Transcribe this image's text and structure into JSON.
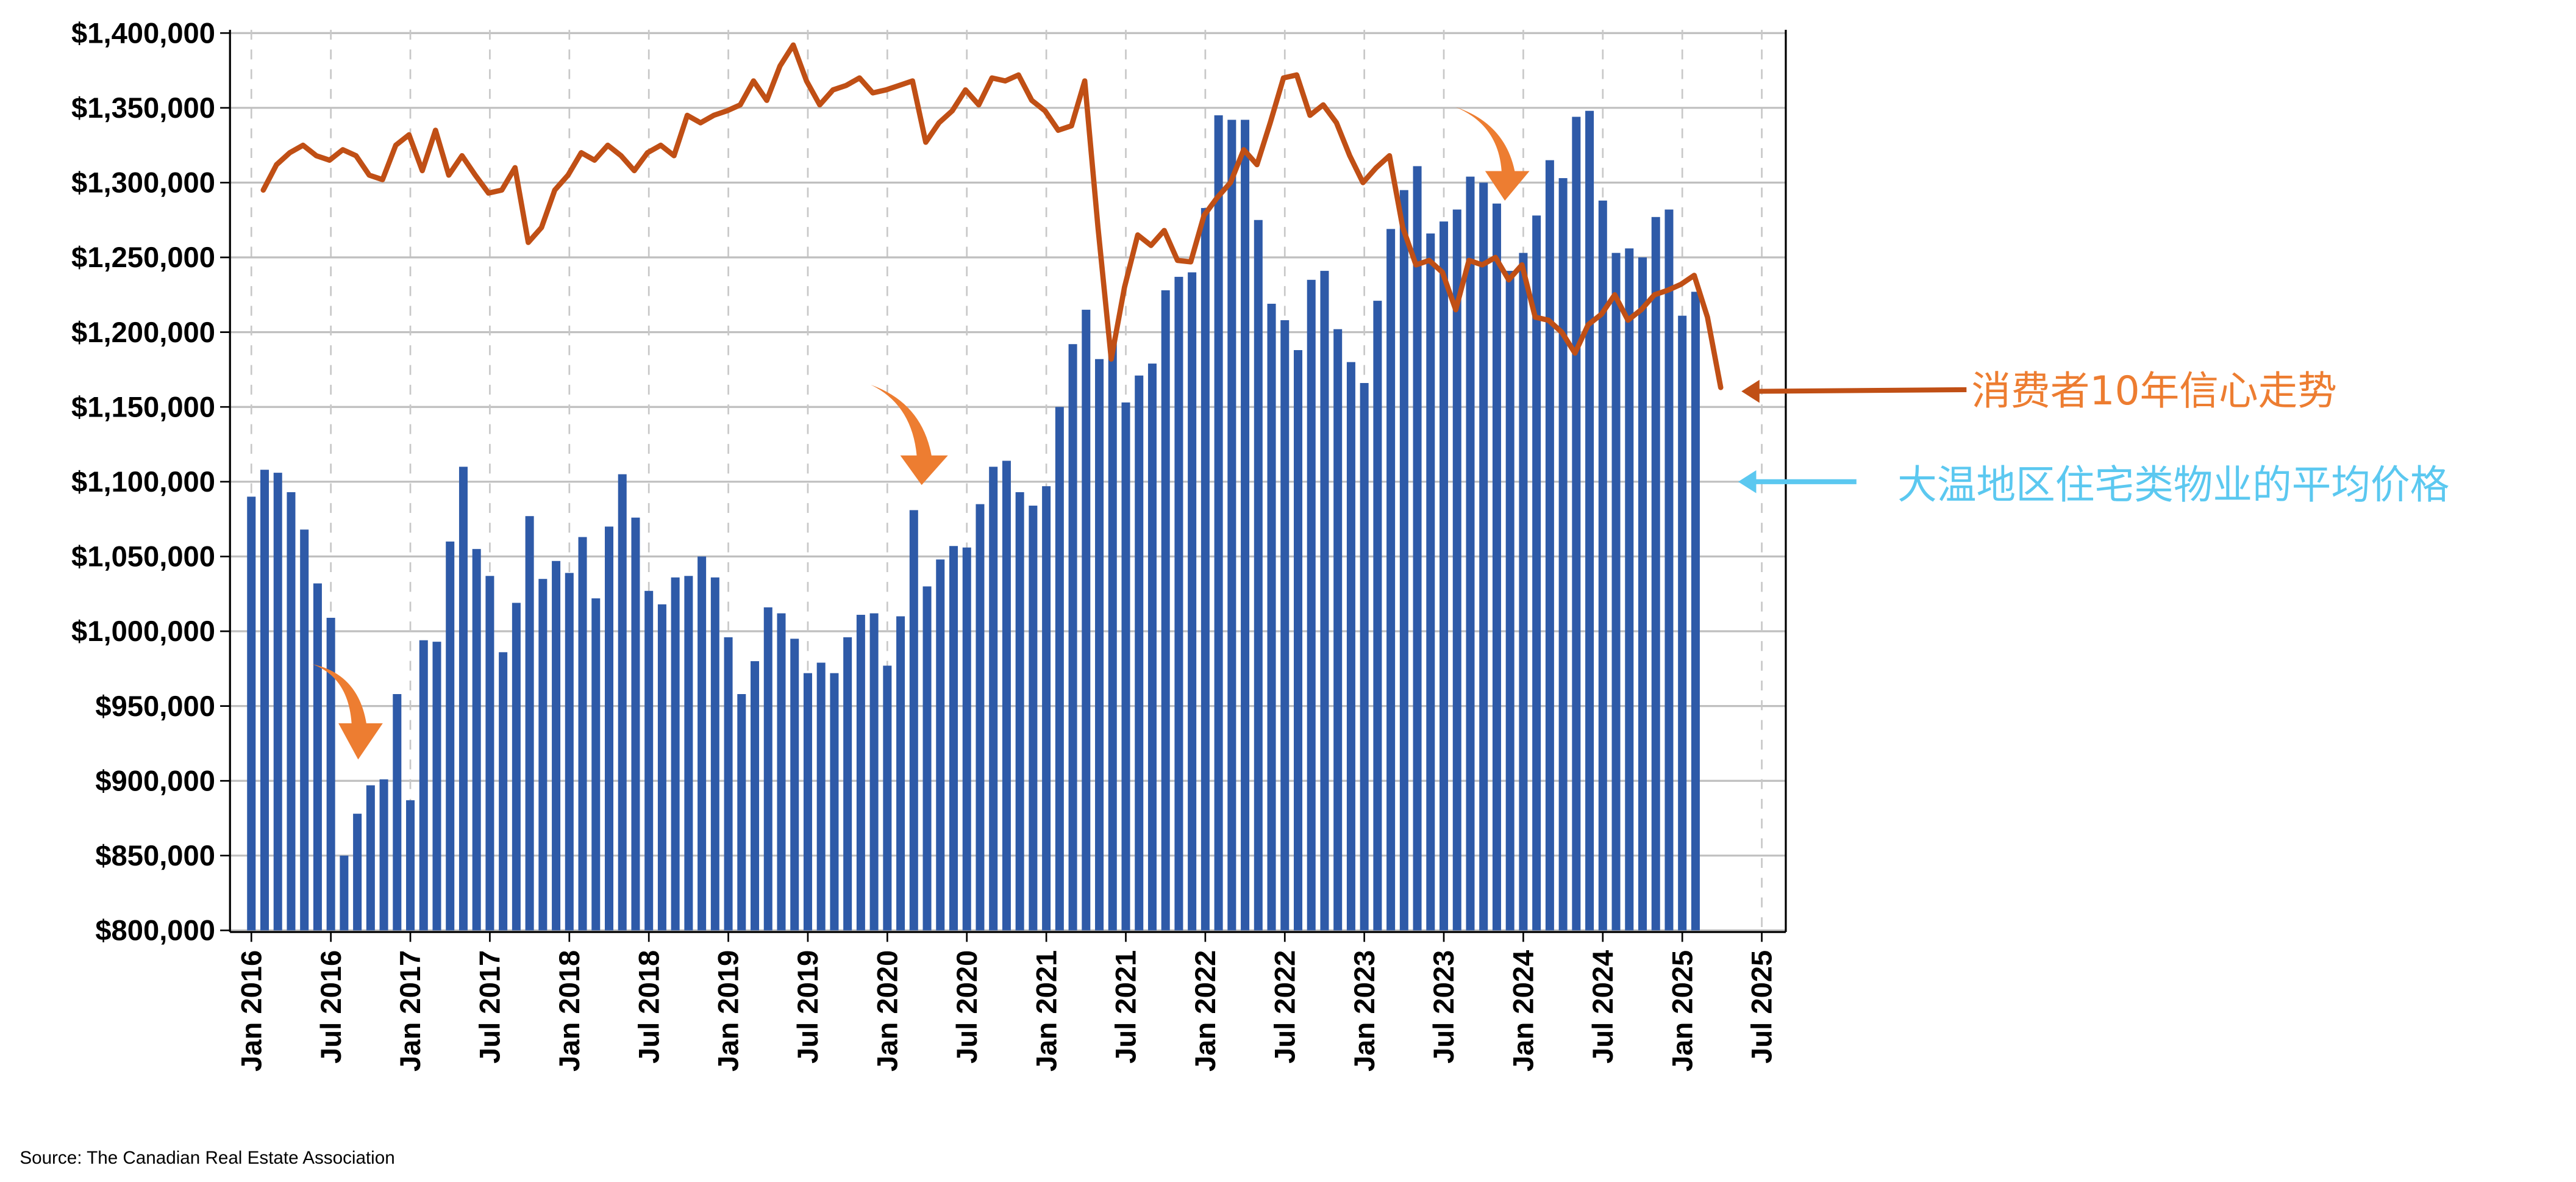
{
  "chart_data": {
    "type": "bar",
    "title": "",
    "xlabel": "",
    "ylabel": "",
    "ylim": [
      800000,
      1400000
    ],
    "grid": true,
    "y_ticks": [
      "$800,000",
      "$850,000",
      "$900,000",
      "$950,000",
      "$1,000,000",
      "$1,050,000",
      "$1,100,000",
      "$1,150,000",
      "$1,200,000",
      "$1,250,000",
      "$1,300,000",
      "$1,350,000",
      "$1,400,000"
    ],
    "x_ticks": [
      "Jan 2016",
      "Jul 2016",
      "Jan 2017",
      "Jul 2017",
      "Jan 2018",
      "Jul 2018",
      "Jan 2019",
      "Jul 2019",
      "Jan 2020",
      "Jul 2020",
      "Jan 2021",
      "Jul 2021",
      "Jan 2022",
      "Jul 2022",
      "Jan 2023",
      "Jul 2023",
      "Jan 2024",
      "Jul 2024",
      "Jan 2025",
      "Jul 2025"
    ],
    "x_start": "Jan 2016",
    "x_frequency": "monthly",
    "series": [
      {
        "name": "大温地区住宅类物业的平均价格",
        "type": "bar",
        "color": "#2E5AA8",
        "values": [
          1090000,
          1108000,
          1106000,
          1093000,
          1068000,
          1032000,
          1009000,
          850000,
          878000,
          897000,
          901000,
          958000,
          887000,
          994000,
          993000,
          1060000,
          1110000,
          1055000,
          1037000,
          986000,
          1019000,
          1077000,
          1035000,
          1047000,
          1039000,
          1063000,
          1022000,
          1070000,
          1105000,
          1076000,
          1027000,
          1018000,
          1036000,
          1037000,
          1050000,
          1036000,
          996000,
          958000,
          980000,
          1016000,
          1012000,
          995000,
          972000,
          979000,
          972000,
          996000,
          1011000,
          1012000,
          977000,
          1010000,
          1081000,
          1030000,
          1048000,
          1057000,
          1056000,
          1085000,
          1110000,
          1114000,
          1093000,
          1084000,
          1097000,
          1150000,
          1192000,
          1215000,
          1182000,
          1194000,
          1153000,
          1171000,
          1179000,
          1228000,
          1237000,
          1240000,
          1283000,
          1345000,
          1342000,
          1342000,
          1275000,
          1219000,
          1208000,
          1188000,
          1235000,
          1241000,
          1202000,
          1180000,
          1166000,
          1221000,
          1269000,
          1295000,
          1311000,
          1266000,
          1274000,
          1282000,
          1304000,
          1300000,
          1286000,
          1241000,
          1253000,
          1278000,
          1315000,
          1303000,
          1344000,
          1348000,
          1288000,
          1253000,
          1256000,
          1250000,
          1277000,
          1282000,
          1211000,
          1227000
        ]
      },
      {
        "name": "消费者10年信心走势",
        "type": "line",
        "color": "#C04F15",
        "values": [
          1295000,
          1312000,
          1320000,
          1325000,
          1318000,
          1315000,
          1322000,
          1318000,
          1305000,
          1302000,
          1325000,
          1332000,
          1308000,
          1335000,
          1305000,
          1318000,
          1305000,
          1293000,
          1295000,
          1310000,
          1260000,
          1270000,
          1295000,
          1305000,
          1320000,
          1315000,
          1325000,
          1318000,
          1308000,
          1320000,
          1325000,
          1318000,
          1345000,
          1340000,
          1345000,
          1348000,
          1352000,
          1368000,
          1355000,
          1378000,
          1392000,
          1368000,
          1352000,
          1362000,
          1365000,
          1370000,
          1360000,
          1362000,
          1365000,
          1368000,
          1327000,
          1340000,
          1348000,
          1362000,
          1352000,
          1370000,
          1368000,
          1372000,
          1355000,
          1348000,
          1335000,
          1338000,
          1368000,
          1270000,
          1182000,
          1230000,
          1265000,
          1258000,
          1268000,
          1248000,
          1247000,
          1278000,
          1290000,
          1300000,
          1322000,
          1312000,
          1340000,
          1370000,
          1372000,
          1345000,
          1352000,
          1340000,
          1318000,
          1300000,
          1310000,
          1318000,
          1270000,
          1245000,
          1248000,
          1240000,
          1215000,
          1248000,
          1245000,
          1250000,
          1235000,
          1245000,
          1210000,
          1208000,
          1200000,
          1186000,
          1205000,
          1212000,
          1225000,
          1208000,
          1215000,
          1225000,
          1228000,
          1232000,
          1238000,
          1210000,
          1163000
        ]
      }
    ],
    "annotations": {
      "line_label": "消费者10年信心走势",
      "bar_label": "大温地区住宅类物业的平均价格",
      "line_label_color": "#ED7D31",
      "bar_label_color": "#5BC8F0"
    },
    "source": "Source: The Canadian Real Estate Association"
  }
}
